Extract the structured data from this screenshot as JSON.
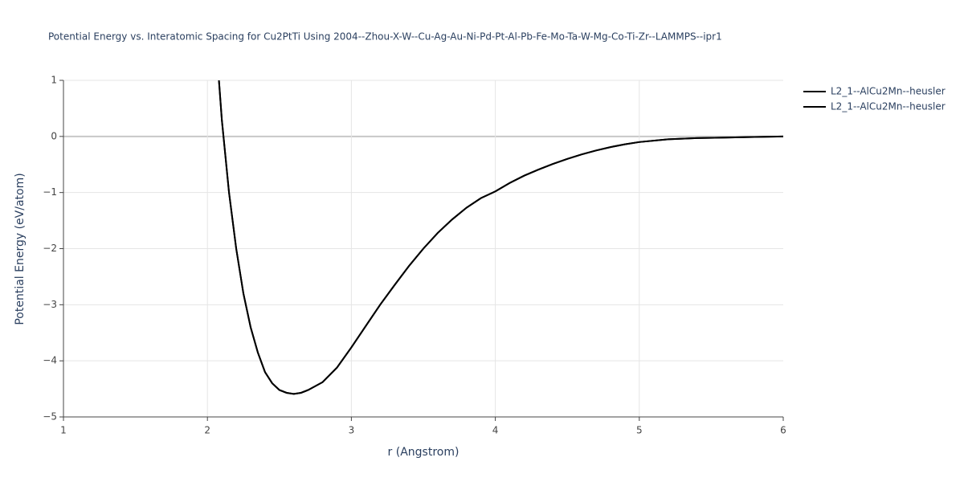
{
  "chart_data": {
    "type": "line",
    "title": "Potential Energy vs. Interatomic Spacing for Cu2PtTi Using 2004--Zhou-X-W--Cu-Ag-Au-Ni-Pd-Pt-Al-Pb-Fe-Mo-Ta-W-Mg-Co-Ti-Zr--LAMMPS--ipr1",
    "x_label": "r (Angstrom)",
    "y_label": "Potential Energy (eV/atom)",
    "x": [
      2.08,
      2.1,
      2.15,
      2.2,
      2.25,
      2.3,
      2.35,
      2.4,
      2.45,
      2.5,
      2.55,
      2.6,
      2.65,
      2.7,
      2.8,
      2.9,
      3.0,
      3.1,
      3.2,
      3.3,
      3.4,
      3.5,
      3.6,
      3.7,
      3.8,
      3.9,
      4.0,
      4.1,
      4.2,
      4.3,
      4.4,
      4.5,
      4.6,
      4.7,
      4.8,
      4.9,
      5.0,
      5.2,
      5.4,
      5.6,
      5.8,
      6.0
    ],
    "series": [
      {
        "name": "L2_1--AlCu2Mn--heusler",
        "color": "#000000",
        "values": [
          1.0,
          0.3,
          -1.0,
          -2.0,
          -2.8,
          -3.4,
          -3.85,
          -4.2,
          -4.4,
          -4.52,
          -4.57,
          -4.59,
          -4.57,
          -4.52,
          -4.38,
          -4.12,
          -3.76,
          -3.38,
          -3.0,
          -2.65,
          -2.31,
          -2.0,
          -1.72,
          -1.48,
          -1.27,
          -1.1,
          -0.98,
          -0.83,
          -0.7,
          -0.59,
          -0.49,
          -0.4,
          -0.32,
          -0.25,
          -0.19,
          -0.14,
          -0.1,
          -0.05,
          -0.03,
          -0.02,
          -0.01,
          0.0
        ]
      },
      {
        "name": "L2_1--AlCu2Mn--heusler",
        "color": "#000000",
        "values": [
          1.0,
          0.3,
          -1.0,
          -2.0,
          -2.8,
          -3.4,
          -3.85,
          -4.2,
          -4.4,
          -4.52,
          -4.57,
          -4.59,
          -4.57,
          -4.52,
          -4.38,
          -4.12,
          -3.76,
          -3.38,
          -3.0,
          -2.65,
          -2.31,
          -2.0,
          -1.72,
          -1.48,
          -1.27,
          -1.1,
          -0.98,
          -0.83,
          -0.7,
          -0.59,
          -0.49,
          -0.4,
          -0.32,
          -0.25,
          -0.19,
          -0.14,
          -0.1,
          -0.05,
          -0.03,
          -0.02,
          -0.01,
          0.0
        ]
      }
    ],
    "xlim": [
      1,
      6
    ],
    "ylim": [
      -5,
      1
    ],
    "xticks": [
      1,
      2,
      3,
      4,
      5,
      6
    ],
    "yticks": [
      {
        "value": -5,
        "label": "−5"
      },
      {
        "value": -4,
        "label": "−4"
      },
      {
        "value": -3,
        "label": "−3"
      },
      {
        "value": -2,
        "label": "−2"
      },
      {
        "value": -1,
        "label": "−1"
      },
      0,
      1
    ],
    "grid": true
  }
}
